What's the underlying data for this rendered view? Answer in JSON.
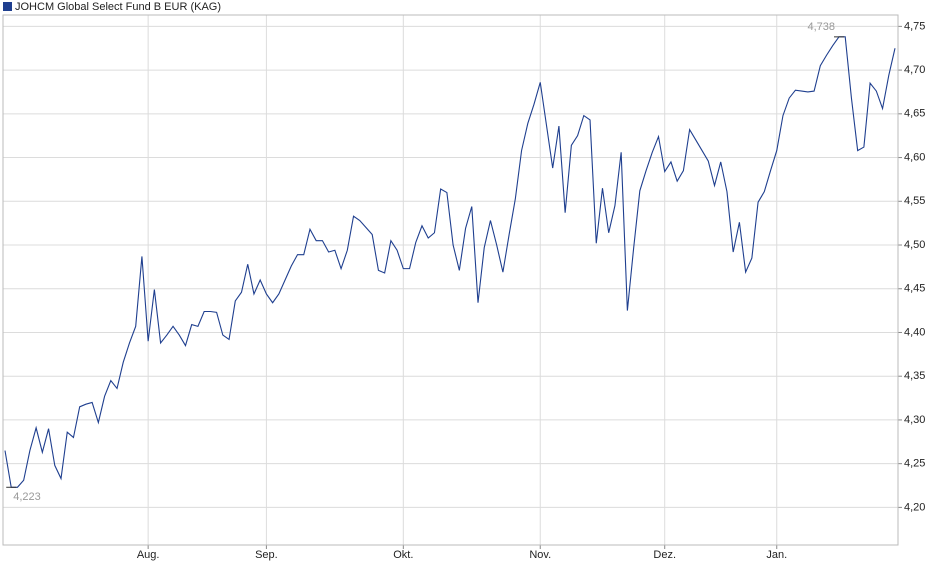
{
  "chart_data": {
    "type": "line",
    "series": [
      {
        "name": "JOHCM Global Select Fund B EUR (KAG)",
        "color": "#1f3f8f",
        "values": [
          4.265,
          4.223,
          4.223,
          4.231,
          4.265,
          4.291,
          4.263,
          4.29,
          4.248,
          4.233,
          4.286,
          4.28,
          4.315,
          4.318,
          4.32,
          4.297,
          4.327,
          4.345,
          4.336,
          4.366,
          4.388,
          4.407,
          4.487,
          4.39,
          4.449,
          4.388,
          4.397,
          4.407,
          4.397,
          4.385,
          4.409,
          4.407,
          4.424,
          4.424,
          4.423,
          4.397,
          4.392,
          4.436,
          4.446,
          4.478,
          4.444,
          4.46,
          4.444,
          4.434,
          4.444,
          4.46,
          4.476,
          4.489,
          4.489,
          4.518,
          4.505,
          4.505,
          4.492,
          4.494,
          4.473,
          4.494,
          4.533,
          4.528,
          4.52,
          4.512,
          4.471,
          4.468,
          4.505,
          4.494,
          4.473,
          4.473,
          4.503,
          4.522,
          4.508,
          4.514,
          4.564,
          4.56,
          4.5,
          4.471,
          4.519,
          4.544,
          4.434,
          4.497,
          4.528,
          4.5,
          4.469,
          4.512,
          4.553,
          4.608,
          4.639,
          4.661,
          4.686,
          4.637,
          4.588,
          4.636,
          4.537,
          4.614,
          4.625,
          4.648,
          4.643,
          4.502,
          4.565,
          4.514,
          4.545,
          4.606,
          4.425,
          4.496,
          4.562,
          4.585,
          4.606,
          4.624,
          4.584,
          4.595,
          4.573,
          4.585,
          4.632,
          4.62,
          4.608,
          4.596,
          4.568,
          4.595,
          4.561,
          4.492,
          4.526,
          4.469,
          4.485,
          4.549,
          4.561,
          4.585,
          4.608,
          4.648,
          4.668,
          4.677,
          4.676,
          4.675,
          4.676,
          4.705,
          4.717,
          4.728,
          4.738,
          4.738,
          4.668,
          4.608,
          4.612,
          4.685,
          4.676,
          4.656,
          4.694,
          4.725
        ]
      }
    ],
    "categories": [
      null,
      null,
      null,
      null,
      null,
      null,
      null,
      null,
      null,
      null,
      null,
      null,
      null,
      null,
      null,
      null,
      null,
      null,
      null,
      null,
      null,
      null,
      null,
      "Aug.",
      null,
      null,
      null,
      null,
      null,
      null,
      null,
      null,
      null,
      null,
      null,
      null,
      null,
      null,
      null,
      null,
      null,
      null,
      "Sep.",
      null,
      null,
      null,
      null,
      null,
      null,
      null,
      null,
      null,
      null,
      null,
      null,
      null,
      null,
      null,
      null,
      null,
      null,
      null,
      null,
      null,
      "Okt.",
      null,
      null,
      null,
      null,
      null,
      null,
      null,
      null,
      null,
      null,
      null,
      null,
      null,
      null,
      null,
      null,
      null,
      null,
      null,
      null,
      null,
      "Nov.",
      null,
      null,
      null,
      null,
      null,
      null,
      null,
      null,
      null,
      null,
      null,
      null,
      null,
      null,
      null,
      null,
      null,
      null,
      null,
      "Dez.",
      null,
      null,
      null,
      null,
      null,
      null,
      null,
      null,
      null,
      null,
      null,
      null,
      null,
      null,
      null,
      null,
      null,
      "Jan.",
      null,
      null,
      null,
      null,
      null,
      null,
      null,
      null,
      null,
      null,
      null,
      null,
      null,
      null,
      null,
      null,
      null,
      null,
      null
    ],
    "ylim": [
      4.157,
      4.763
    ],
    "yticks": [
      {
        "value": 4.2,
        "label": "4,20"
      },
      {
        "value": 4.25,
        "label": "4,25"
      },
      {
        "value": 4.3,
        "label": "4,30"
      },
      {
        "value": 4.35,
        "label": "4,35"
      },
      {
        "value": 4.4,
        "label": "4,40"
      },
      {
        "value": 4.45,
        "label": "4,45"
      },
      {
        "value": 4.5,
        "label": "4,50"
      },
      {
        "value": 4.55,
        "label": "4,55"
      },
      {
        "value": 4.6,
        "label": "4,60"
      },
      {
        "value": 4.65,
        "label": "4,65"
      },
      {
        "value": 4.7,
        "label": "4,70"
      },
      {
        "value": 4.75,
        "label": "4,75"
      }
    ],
    "annotations": [
      {
        "value": 4.738,
        "label": "4,738"
      },
      {
        "value": 4.223,
        "label": "4,223"
      }
    ],
    "grid": true
  }
}
